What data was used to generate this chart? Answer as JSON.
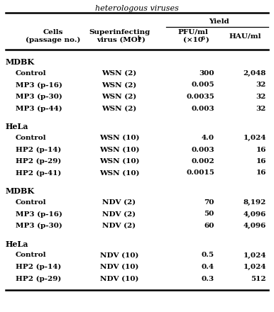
{
  "title": "heterologous viruses",
  "sections": [
    {
      "section_label": "MDBK",
      "rows": [
        [
          "Control",
          "WSN (2)",
          "300",
          "2,048"
        ],
        [
          "MP3 (p-16)",
          "WSN (2)",
          "0.005",
          "32"
        ],
        [
          "MP3 (p-30)",
          "WSN (2)",
          "0.0035",
          "32"
        ],
        [
          "MP3 (p-44)",
          "WSN (2)",
          "0.003",
          "32"
        ]
      ]
    },
    {
      "section_label": "HeLa",
      "rows": [
        [
          "Control",
          "WSN (10)",
          "4.0",
          "1,024"
        ],
        [
          "HP2 (p-14)",
          "WSN (10)",
          "0.003",
          "16"
        ],
        [
          "HP2 (p-29)",
          "WSN (10)",
          "0.002",
          "16"
        ],
        [
          "HP2 (p-41)",
          "WSN (10)",
          "0.0015",
          "16"
        ]
      ]
    },
    {
      "section_label": "MDBK",
      "rows": [
        [
          "Control",
          "NDV (2)",
          "70",
          "8,192"
        ],
        [
          "MP3 (p-16)",
          "NDV (2)",
          "50",
          "4,096"
        ],
        [
          "MP3 (p-30)",
          "NDV (2)",
          "60",
          "4,096"
        ]
      ]
    },
    {
      "section_label": "HeLa",
      "rows": [
        [
          "Control",
          "NDV (10)",
          "0.5",
          "1,024"
        ],
        [
          "HP2 (p-14)",
          "NDV (10)",
          "0.4",
          "1,024"
        ],
        [
          "HP2 (p-29)",
          "NDV (10)",
          "0.3",
          "512"
        ]
      ]
    }
  ],
  "bg_color": "#ffffff",
  "text_color": "#000000",
  "font_family": "DejaVu Serif"
}
